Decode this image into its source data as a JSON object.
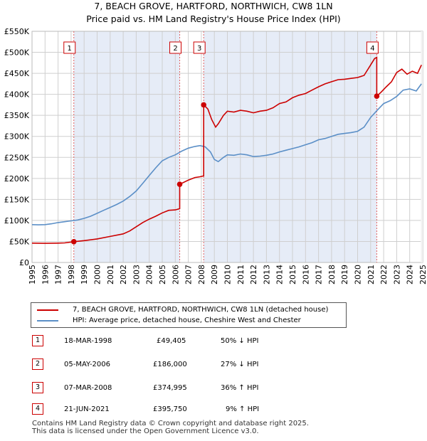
{
  "chart_data": {
    "type": "line",
    "title": "7, BEACH GROVE, HARTFORD, NORTHWICH, CW8 1LN",
    "subtitle": "Price paid vs. HM Land Registry's House Price Index (HPI)",
    "xlabel": "",
    "ylabel": "",
    "xlim": [
      1995,
      2025
    ],
    "ylim": [
      0,
      550000
    ],
    "y_ticks": [
      0,
      50000,
      100000,
      150000,
      200000,
      250000,
      300000,
      350000,
      400000,
      450000,
      500000,
      550000
    ],
    "y_tick_labels": [
      "£0",
      "£50K",
      "£100K",
      "£150K",
      "£200K",
      "£250K",
      "£300K",
      "£350K",
      "£400K",
      "£450K",
      "£500K",
      "£550K"
    ],
    "x_ticks": [
      1995,
      1996,
      1997,
      1998,
      1999,
      2000,
      2001,
      2002,
      2003,
      2004,
      2005,
      2006,
      2007,
      2008,
      2009,
      2010,
      2011,
      2012,
      2013,
      2014,
      2015,
      2016,
      2017,
      2018,
      2019,
      2020,
      2021,
      2022,
      2023,
      2024,
      2025
    ],
    "x_tick_labels": [
      "1995",
      "1996",
      "1997",
      "1998",
      "1999",
      "2000",
      "2001",
      "2002",
      "2003",
      "2004",
      "2005",
      "2006",
      "2007",
      "2008",
      "2009",
      "2010",
      "2011",
      "2012",
      "2013",
      "2014",
      "2015",
      "2016",
      "2017",
      "2018",
      "2019",
      "2020",
      "2021",
      "2022",
      "2023",
      "2024",
      "2025"
    ],
    "grid": true,
    "series": [
      {
        "name": "7, BEACH GROVE, HARTFORD, NORTHWICH, CW8 1LN (detached house)",
        "color": "#cc0000",
        "x": [
          1995.0,
          1996.0,
          1997.0,
          1997.5,
          1998.21,
          1998.21,
          1999.0,
          2000.0,
          2001.0,
          2002.0,
          2002.5,
          2003.0,
          2003.5,
          2004.0,
          2004.5,
          2005.0,
          2005.5,
          2006.0,
          2006.34,
          2006.34,
          2007.0,
          2007.5,
          2007.9,
          2008.18,
          2008.18,
          2008.5,
          2008.8,
          2009.1,
          2009.3,
          2009.7,
          2010.0,
          2010.5,
          2011.0,
          2011.5,
          2012.0,
          2012.5,
          2013.0,
          2013.5,
          2014.0,
          2014.5,
          2015.0,
          2015.5,
          2016.0,
          2016.5,
          2017.0,
          2017.5,
          2018.0,
          2018.5,
          2019.0,
          2019.5,
          2020.0,
          2020.5,
          2021.0,
          2021.3,
          2021.47,
          2021.47,
          2021.8,
          2022.2,
          2022.6,
          2023.0,
          2023.4,
          2023.8,
          2024.2,
          2024.6,
          2024.9
        ],
        "values": [
          46000,
          45500,
          46000,
          46500,
          49405,
          49405,
          52000,
          56000,
          62000,
          68000,
          75000,
          85000,
          95000,
          103000,
          110000,
          118000,
          124000,
          125000,
          128000,
          186000,
          196000,
          202000,
          204000,
          206000,
          374995,
          365000,
          340000,
          322000,
          330000,
          350000,
          360000,
          358000,
          362000,
          360000,
          356000,
          360000,
          362000,
          368000,
          378000,
          382000,
          392000,
          398000,
          402000,
          410000,
          418000,
          425000,
          430000,
          435000,
          436000,
          438000,
          440000,
          445000,
          470000,
          485000,
          488000,
          395750,
          405000,
          418000,
          430000,
          452000,
          460000,
          448000,
          455000,
          450000,
          470000
        ]
      },
      {
        "name": "HPI: Average price, detached house, Cheshire West and Chester",
        "color": "#5b8fc7",
        "x": [
          1995.0,
          1995.5,
          1996.0,
          1996.5,
          1997.0,
          1997.5,
          1998.0,
          1998.5,
          1999.0,
          1999.5,
          2000.0,
          2000.5,
          2001.0,
          2001.5,
          2002.0,
          2002.5,
          2003.0,
          2003.5,
          2004.0,
          2004.5,
          2005.0,
          2005.5,
          2006.0,
          2006.5,
          2007.0,
          2007.5,
          2007.9,
          2008.3,
          2008.7,
          2009.0,
          2009.3,
          2009.7,
          2010.0,
          2010.5,
          2011.0,
          2011.5,
          2012.0,
          2012.5,
          2013.0,
          2013.5,
          2014.0,
          2014.5,
          2015.0,
          2015.5,
          2016.0,
          2016.5,
          2017.0,
          2017.5,
          2018.0,
          2018.5,
          2019.0,
          2019.5,
          2020.0,
          2020.5,
          2021.0,
          2021.5,
          2022.0,
          2022.5,
          2023.0,
          2023.5,
          2024.0,
          2024.5,
          2024.9
        ],
        "values": [
          90000,
          89500,
          90000,
          92000,
          95000,
          97000,
          99000,
          101000,
          105000,
          110000,
          117000,
          124000,
          131000,
          138000,
          146000,
          157000,
          170000,
          188000,
          207000,
          225000,
          242000,
          250000,
          256000,
          265000,
          272000,
          276000,
          278000,
          275000,
          263000,
          245000,
          240000,
          250000,
          256000,
          255000,
          258000,
          256000,
          252000,
          253000,
          255000,
          258000,
          263000,
          267000,
          271000,
          275000,
          280000,
          285000,
          292000,
          295000,
          300000,
          305000,
          307000,
          309000,
          312000,
          322000,
          345000,
          362000,
          378000,
          385000,
          395000,
          410000,
          413000,
          408000,
          425000
        ]
      }
    ],
    "sales": [
      {
        "num": "1",
        "year": 1998.21,
        "value": 49405
      },
      {
        "num": "2",
        "year": 2006.34,
        "value": 186000
      },
      {
        "num": "3",
        "year": 2008.18,
        "value": 374995
      },
      {
        "num": "4",
        "year": 2021.47,
        "value": 395750
      }
    ]
  },
  "colors": {
    "price_line": "#cc0000",
    "hpi_line": "#5b8fc7",
    "shade": "#e6ecf7",
    "grid": "#cfcfcf"
  },
  "legend": {
    "property_label": "7, BEACH GROVE, HARTFORD, NORTHWICH, CW8 1LN (detached house)",
    "hpi_label": "HPI: Average price, detached house, Cheshire West and Chester"
  },
  "sales_table": [
    {
      "num": "1",
      "date": "18-MAR-1998",
      "price": "£49,405",
      "hpi": "50% ↓ HPI"
    },
    {
      "num": "2",
      "date": "05-MAY-2006",
      "price": "£186,000",
      "hpi": "27% ↓ HPI"
    },
    {
      "num": "3",
      "date": "07-MAR-2008",
      "price": "£374,995",
      "hpi": "36% ↑ HPI"
    },
    {
      "num": "4",
      "date": "21-JUN-2021",
      "price": "£395,750",
      "hpi": "9% ↑ HPI"
    }
  ],
  "footer": {
    "line1": "Contains HM Land Registry data © Crown copyright and database right 2025.",
    "line2": "This data is licensed under the Open Government Licence v3.0."
  }
}
